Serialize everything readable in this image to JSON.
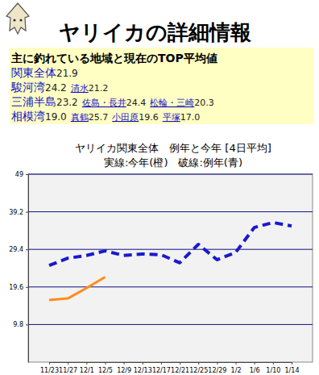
{
  "header": {
    "title": "ヤリイカの詳細情報"
  },
  "summary": {
    "heading": "主に釣れている地域と現在のTOP平均値",
    "regions": [
      {
        "name": "関東全体",
        "value": "21.9",
        "areas": []
      },
      {
        "name": "駿河湾",
        "value": "24.2",
        "areas": [
          {
            "name": "清水",
            "value": "21.2"
          }
        ]
      },
      {
        "name": "三浦半島",
        "value": "23.2",
        "areas": [
          {
            "name": "佐島・長井",
            "value": "24.4"
          },
          {
            "name": "松輪・三崎",
            "value": "20.3"
          }
        ]
      },
      {
        "name": "相模湾",
        "value": "19.0",
        "areas": [
          {
            "name": "真鶴",
            "value": "25.7"
          },
          {
            "name": "小田原",
            "value": "19.6"
          },
          {
            "name": "平塚",
            "value": "17.0"
          }
        ]
      }
    ]
  },
  "chart_data": {
    "type": "line",
    "title": "ヤリイカ関東全体　例年と今年 [4日平均]",
    "subtitle": "実線:今年(橙)　破線:例年(青)",
    "categories": [
      "11/23",
      "11/27",
      "12/1",
      "12/5",
      "12/9",
      "12/13",
      "12/17",
      "12/21",
      "12/25",
      "12/29",
      "1/2",
      "1/6",
      "1/10",
      "1/14"
    ],
    "series": [
      {
        "color": "#ff8c1a",
        "line_style": "solid",
        "values": [
          16.2,
          16.6,
          19.3,
          22.2,
          null,
          null,
          null,
          null,
          null,
          null,
          null,
          null,
          null,
          null
        ]
      },
      {
        "color": "#1a1acc",
        "line_style": "dashed",
        "values": [
          25.2,
          27.1,
          27.8,
          29.0,
          27.8,
          28.2,
          28.0,
          25.9,
          30.7,
          26.7,
          28.6,
          35.1,
          36.4,
          35.5
        ]
      }
    ],
    "ylim": [
      0,
      49
    ],
    "yticks": [
      9.8,
      19.6,
      29.4,
      39.2,
      49
    ],
    "grid": true
  }
}
